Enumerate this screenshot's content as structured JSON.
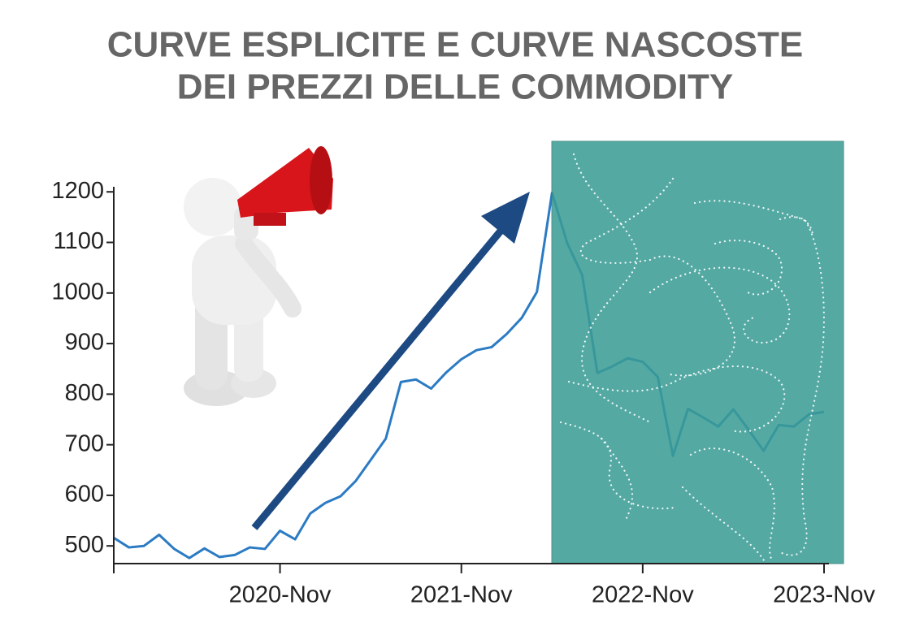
{
  "chart_data": {
    "type": "line",
    "title": [
      "CURVE ESPLICITE E CURVE NASCOSTE",
      "DEI PREZZI DELLE COMMODITY"
    ],
    "x": [
      "2019-Dec",
      "2020-Jan",
      "2020-Feb",
      "2020-Mar",
      "2020-Apr",
      "2020-May",
      "2020-Jun",
      "2020-Jul",
      "2020-Aug",
      "2020-Sep",
      "2020-Oct",
      "2020-Nov",
      "2020-Dec",
      "2021-Jan",
      "2021-Feb",
      "2021-Mar",
      "2021-Apr",
      "2021-May",
      "2021-Jun",
      "2021-Jul",
      "2021-Aug",
      "2021-Sep",
      "2021-Oct",
      "2021-Nov",
      "2021-Dec",
      "2022-Jan",
      "2022-Feb",
      "2022-Mar",
      "2022-Apr",
      "2022-May",
      "2022-Jun",
      "2022-Jul",
      "2022-Aug",
      "2022-Sep",
      "2022-Oct",
      "2022-Nov",
      "2022-Dec",
      "2023-Jan",
      "2023-Feb",
      "2023-Mar",
      "2023-Apr",
      "2023-May",
      "2023-Jun",
      "2023-Jul",
      "2023-Aug",
      "2023-Sep",
      "2023-Oct",
      "2023-Nov"
    ],
    "series": [
      {
        "color": "#2b7bc4",
        "values": [
          516,
          497,
          500,
          522,
          494,
          476,
          495,
          478,
          482,
          497,
          494,
          530,
          513,
          564,
          585,
          598,
          628,
          670,
          712,
          824,
          829,
          811,
          843,
          869,
          887,
          893,
          919,
          951,
          1002,
          1198,
          1099,
          1035,
          842,
          855,
          871,
          864,
          834,
          678,
          771,
          754,
          736,
          770,
          730,
          688,
          739,
          736,
          760,
          765
        ]
      }
    ],
    "ylim": [
      465,
      1210
    ],
    "yticks": [
      500,
      600,
      700,
      800,
      900,
      1000,
      1100,
      1200
    ],
    "xticks": [
      "2020-Nov",
      "2021-Nov",
      "2022-Nov",
      "2023-Nov"
    ],
    "grid": false
  }
}
